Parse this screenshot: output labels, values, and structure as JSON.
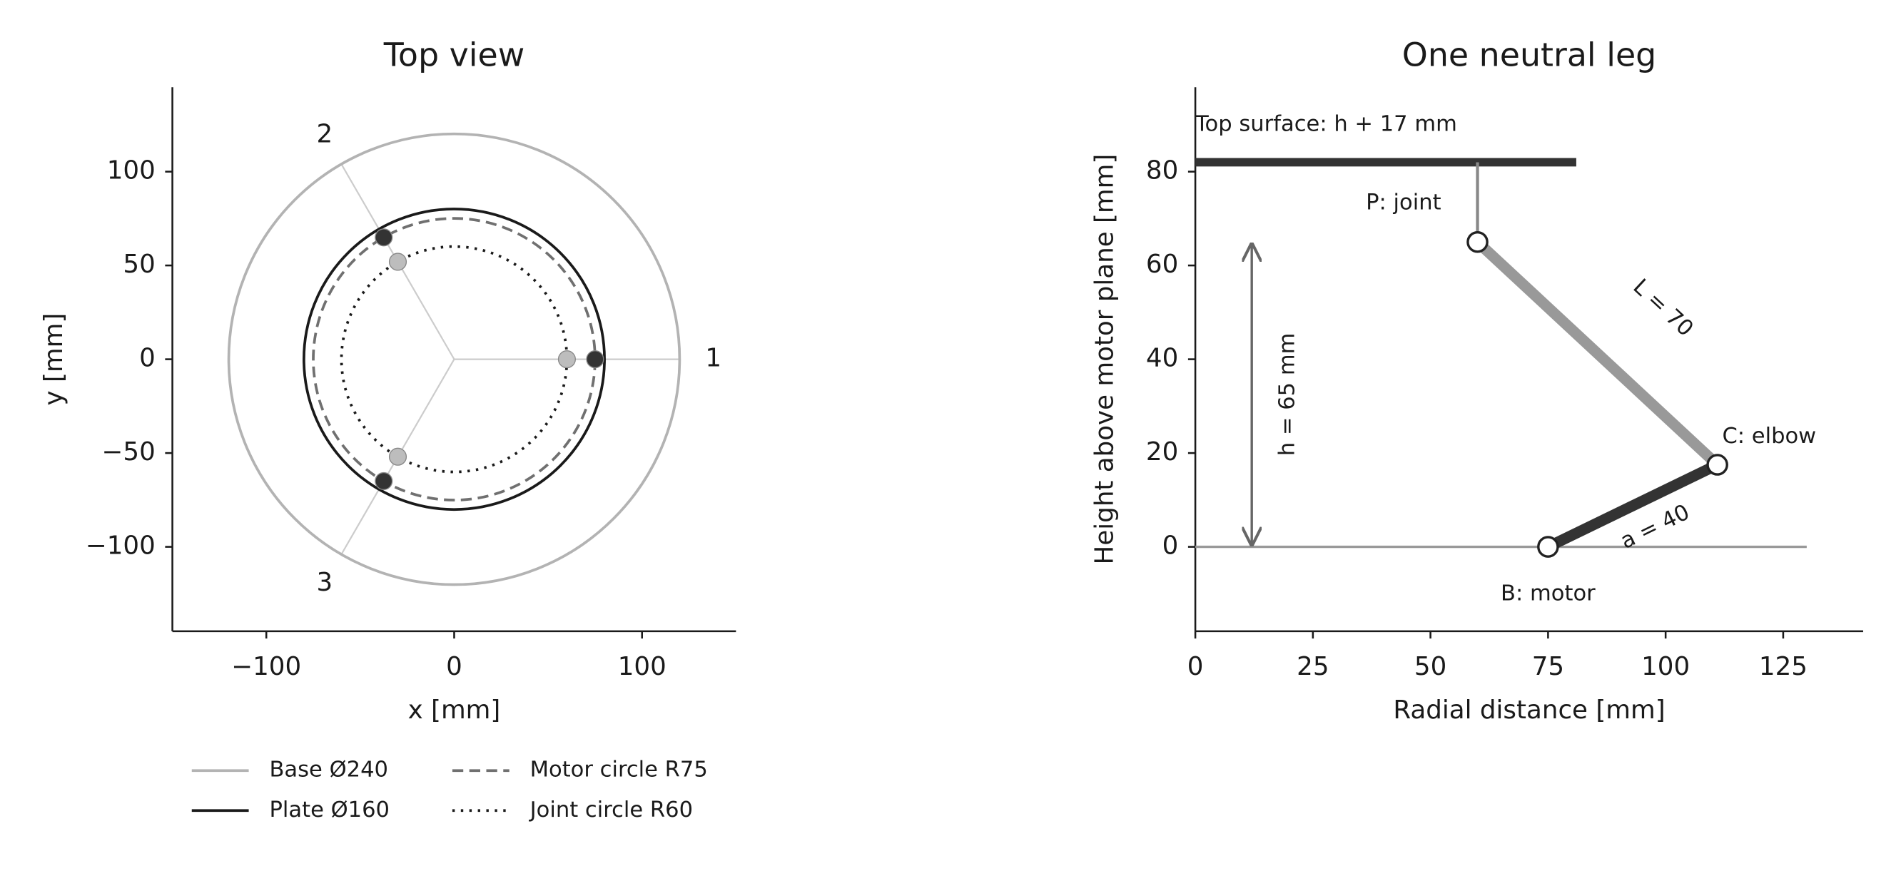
{
  "chart_data": [
    {
      "type": "top-view",
      "title": "Top view",
      "x_label": "x [mm]",
      "y_label": "y [mm]",
      "xlim": [
        -150,
        150
      ],
      "ylim": [
        -145,
        145
      ],
      "xticks": [
        {
          "value": -100,
          "label": "−100"
        },
        0,
        100
      ],
      "yticks": [
        {
          "value": -100,
          "label": "−100"
        },
        {
          "value": -50,
          "label": "−50"
        },
        0,
        50,
        100
      ],
      "series": [
        {
          "name": "Base Ø240",
          "color": "#b3b3b3",
          "radius": 120,
          "style": "solid"
        },
        {
          "name": "Plate Ø160",
          "color": "#1a1a1a",
          "radius": 80,
          "style": "solid"
        },
        {
          "name": "Motor circle R75",
          "color": "#707070",
          "radius": 75,
          "style": "dashed"
        },
        {
          "name": "Joint circle R60",
          "color": "#1a1a1a",
          "radius": 60,
          "style": "dotted"
        }
      ],
      "legs": {
        "labels": [
          "1",
          "2",
          "3"
        ],
        "angles": [
          0,
          120,
          240
        ]
      }
    },
    {
      "type": "leg",
      "title": "One neutral leg",
      "x_label": "Radial distance [mm]",
      "y_label": "Height above motor plane [mm]",
      "xlim": [
        0,
        142
      ],
      "ylim": [
        -18,
        98
      ],
      "xticks": [
        0,
        25,
        50,
        75,
        100,
        125
      ],
      "yticks": [
        0,
        20,
        40,
        60,
        80
      ],
      "motor_plane": {
        "x": [
          0,
          130
        ],
        "y": 0
      },
      "top_surface": {
        "label": "Top surface: h + 17 mm",
        "x": [
          0,
          81
        ],
        "y": 82
      },
      "points": [
        {
          "label": "B: motor",
          "x": 75,
          "y": 0
        },
        {
          "label": "C: elbow",
          "x": 111,
          "y": 17.5
        },
        {
          "label": "P: joint",
          "x": 60,
          "y": 65
        }
      ],
      "links": [
        {
          "label": "a = 40",
          "color": "#333333"
        },
        {
          "label": "L = 70",
          "color": "#999999"
        }
      ],
      "height_arrow": {
        "label": "h = 65 mm",
        "x": 12,
        "y": [
          0,
          65
        ]
      }
    }
  ]
}
